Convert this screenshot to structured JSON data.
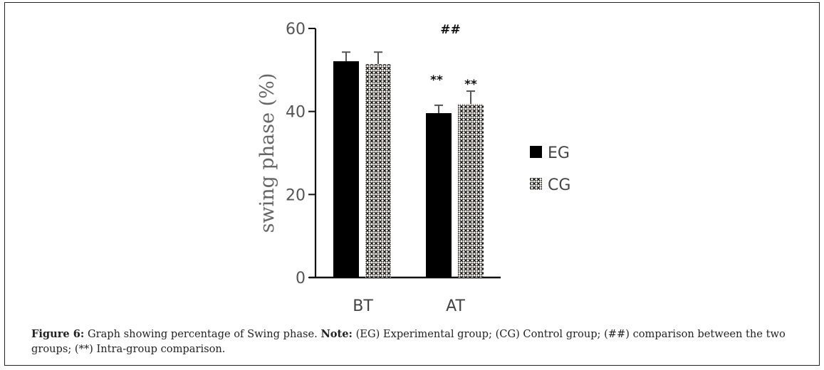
{
  "chart_data": {
    "type": "bar",
    "title": "",
    "xlabel": "",
    "ylabel": "swing phase (%)",
    "ylim": [
      0,
      60
    ],
    "yticks": [
      0,
      20,
      40,
      60
    ],
    "grid": false,
    "categories": [
      "BT",
      "AT"
    ],
    "series": [
      {
        "name": "EG",
        "pattern": "solid",
        "color": "#000000",
        "values": [
          52.1,
          39.6
        ],
        "error_upper": [
          54.3,
          41.5
        ]
      },
      {
        "name": "CG",
        "pattern": "crosshatch",
        "color": "#000000",
        "values": [
          51.4,
          41.8
        ],
        "error_upper": [
          54.3,
          44.9
        ]
      }
    ],
    "annotations": [
      {
        "text": "##",
        "category": "AT",
        "meaning": "comparison between the two groups"
      },
      {
        "text": "**",
        "category": "AT",
        "series": "EG"
      },
      {
        "text": "**",
        "category": "AT",
        "series": "CG"
      }
    ],
    "legend": {
      "position": "right",
      "entries": [
        "EG",
        "CG"
      ]
    }
  },
  "caption": {
    "figure_label": "Figure 6:",
    "figure_text": " Graph showing percentage of  Swing phase. ",
    "note_label": "Note:",
    "note_text": " (EG) Experimental group; (CG) Control group; (##) comparison between the two groups; (**) Intra-group comparison."
  }
}
